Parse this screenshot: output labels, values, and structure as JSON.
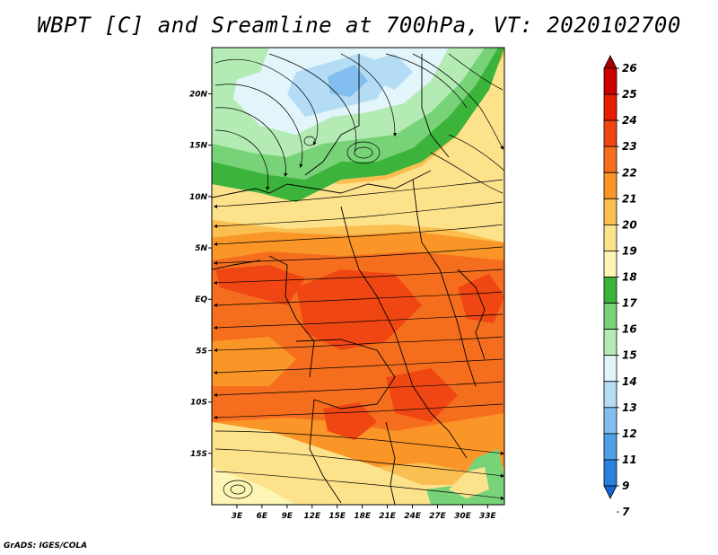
{
  "title": "WBPT [C] and Sreamline at 700hPa, VT: 2020102700",
  "credit": "GrADS: IGES/COLA",
  "map": {
    "lon_range": [
      0,
      35
    ],
    "lat_range": [
      -20,
      24.5
    ],
    "lat_ticks": [
      {
        "value": 20,
        "label": "20N"
      },
      {
        "value": 15,
        "label": "15N"
      },
      {
        "value": 10,
        "label": "10N"
      },
      {
        "value": 5,
        "label": "5N"
      },
      {
        "value": 0,
        "label": "EQ"
      },
      {
        "value": -5,
        "label": "5S"
      },
      {
        "value": -10,
        "label": "10S"
      },
      {
        "value": -15,
        "label": "15S"
      }
    ],
    "lon_ticks": [
      {
        "value": 3,
        "label": "3E"
      },
      {
        "value": 6,
        "label": "6E"
      },
      {
        "value": 9,
        "label": "9E"
      },
      {
        "value": 12,
        "label": "12E"
      },
      {
        "value": 15,
        "label": "15E"
      },
      {
        "value": 18,
        "label": "18E"
      },
      {
        "value": 21,
        "label": "21E"
      },
      {
        "value": 24,
        "label": "24E"
      },
      {
        "value": 27,
        "label": "27E"
      },
      {
        "value": 30,
        "label": "30E"
      },
      {
        "value": 33,
        "label": "33E"
      }
    ]
  },
  "colorbar": {
    "levels": [
      {
        "label": "26",
        "color": "#a50000"
      },
      {
        "label": "25",
        "color": "#cd0000"
      },
      {
        "label": "24",
        "color": "#e61e00"
      },
      {
        "label": "23",
        "color": "#f04614"
      },
      {
        "label": "22",
        "color": "#f56e1e"
      },
      {
        "label": "21",
        "color": "#fa9628"
      },
      {
        "label": "20",
        "color": "#fbbe50"
      },
      {
        "label": "19",
        "color": "#fde28c"
      },
      {
        "label": "18",
        "color": "#fdf5b4"
      },
      {
        "label": "17",
        "color": "#3cb43c"
      },
      {
        "label": "16",
        "color": "#78d278"
      },
      {
        "label": "15",
        "color": "#b4ebb4"
      },
      {
        "label": "14",
        "color": "#e1f5fa"
      },
      {
        "label": "13",
        "color": "#b4dcf5"
      },
      {
        "label": "12",
        "color": "#82bef0"
      },
      {
        "label": "11",
        "color": "#50a0e6"
      },
      {
        "label": "9",
        "color": "#2882dc"
      },
      {
        "label": "7",
        "color": "#1464d2"
      }
    ]
  }
}
